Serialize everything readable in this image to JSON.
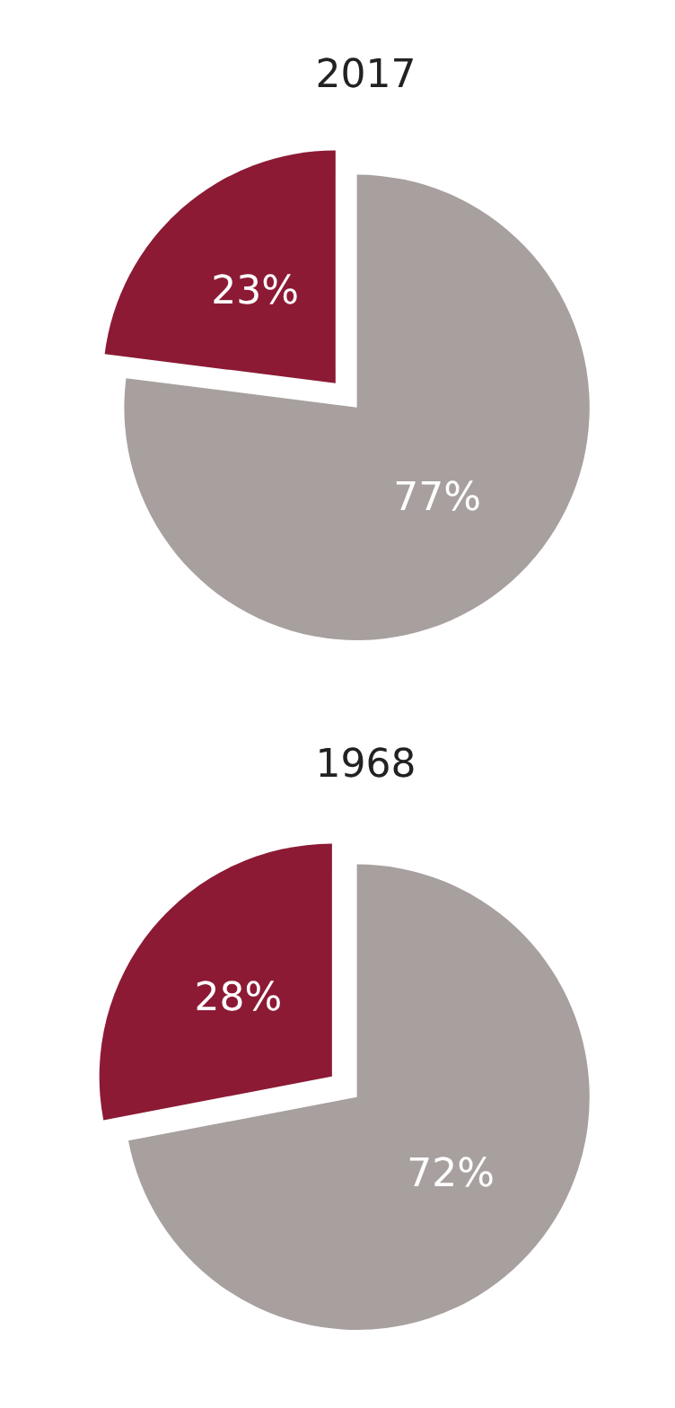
{
  "chart_data": [
    {
      "type": "pie",
      "title": "2017",
      "categories": [
        null,
        null
      ],
      "values": [
        77,
        23
      ],
      "colors": [
        "#a7a09f",
        "#8c1a35"
      ],
      "value_labels": [
        "77%",
        "23%"
      ]
    },
    {
      "type": "pie",
      "title": "1968",
      "categories": [
        null,
        null
      ],
      "values": [
        72,
        28
      ],
      "colors": [
        "#a7a09f",
        "#8c1a35"
      ],
      "value_labels": [
        "72%",
        "28%"
      ]
    }
  ]
}
